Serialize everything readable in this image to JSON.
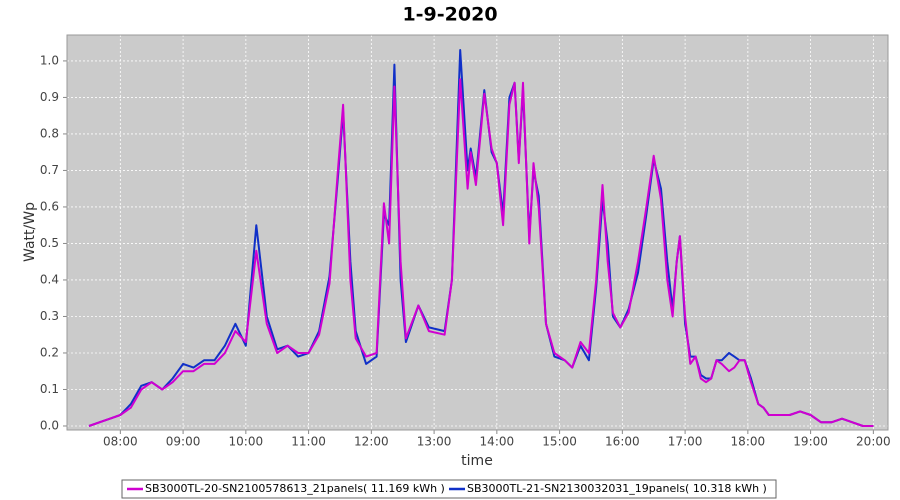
{
  "chart_data": {
    "type": "line",
    "title": "1-9-2020",
    "x_label": "time",
    "y_label": "Watt/Wp",
    "xlim": [
      429,
      1214
    ],
    "ylim": [
      -0.011,
      1.071
    ],
    "xticks": [
      {
        "value": 480,
        "label": "08:00"
      },
      {
        "value": 540,
        "label": "09:00"
      },
      {
        "value": 600,
        "label": "10:00"
      },
      {
        "value": 660,
        "label": "11:00"
      },
      {
        "value": 720,
        "label": "12:00"
      },
      {
        "value": 780,
        "label": "13:00"
      },
      {
        "value": 840,
        "label": "14:00"
      },
      {
        "value": 900,
        "label": "15:00"
      },
      {
        "value": 960,
        "label": "16:00"
      },
      {
        "value": 1020,
        "label": "17:00"
      },
      {
        "value": 1080,
        "label": "18:00"
      },
      {
        "value": 1140,
        "label": "19:00"
      },
      {
        "value": 1200,
        "label": "20:00"
      }
    ],
    "yticks": [
      {
        "value": 0,
        "label": "0.0"
      },
      0.1,
      0.2,
      0.3,
      0.4,
      0.5,
      0.6,
      0.7,
      0.8,
      0.9,
      {
        "value": 1,
        "label": "1.0"
      }
    ],
    "grid": true,
    "legend": "bottom",
    "x": [
      450,
      460,
      470,
      480,
      490,
      500,
      510,
      520,
      530,
      540,
      550,
      560,
      570,
      580,
      590,
      600,
      610,
      620,
      630,
      640,
      650,
      660,
      670,
      680,
      688,
      693,
      700,
      705,
      715,
      725,
      732,
      737,
      742,
      748,
      753,
      765,
      775,
      790,
      797,
      805,
      812,
      815,
      820,
      828,
      835,
      840,
      846,
      852,
      857,
      861,
      865,
      871,
      875,
      880,
      887,
      895,
      905,
      912,
      920,
      928,
      935,
      941,
      946,
      951,
      958,
      966,
      975,
      983,
      990,
      997,
      1003,
      1008,
      1012,
      1015,
      1020,
      1025,
      1030,
      1035,
      1040,
      1045,
      1050,
      1055,
      1062,
      1067,
      1072,
      1077,
      1083,
      1090,
      1095,
      1100,
      1110,
      1120,
      1130,
      1140,
      1150,
      1160,
      1170,
      1180,
      1190,
      1200
    ],
    "series": [
      {
        "name": "SB3000TL-20-SN2100578613_21panels( 11.169 kWh )",
        "color": "#d000d0",
        "values": [
          0.0,
          0.01,
          0.02,
          0.03,
          0.05,
          0.1,
          0.12,
          0.1,
          0.12,
          0.15,
          0.15,
          0.17,
          0.17,
          0.2,
          0.26,
          0.23,
          0.48,
          0.28,
          0.2,
          0.22,
          0.2,
          0.2,
          0.25,
          0.39,
          0.7,
          0.88,
          0.4,
          0.24,
          0.19,
          0.2,
          0.61,
          0.5,
          0.93,
          0.45,
          0.24,
          0.33,
          0.26,
          0.25,
          0.4,
          0.95,
          0.65,
          0.75,
          0.66,
          0.91,
          0.76,
          0.72,
          0.55,
          0.88,
          0.94,
          0.72,
          0.94,
          0.5,
          0.72,
          0.6,
          0.28,
          0.2,
          0.18,
          0.16,
          0.23,
          0.2,
          0.4,
          0.66,
          0.45,
          0.31,
          0.27,
          0.31,
          0.45,
          0.6,
          0.74,
          0.62,
          0.4,
          0.3,
          0.45,
          0.52,
          0.3,
          0.17,
          0.19,
          0.13,
          0.12,
          0.13,
          0.18,
          0.17,
          0.15,
          0.16,
          0.18,
          0.18,
          0.12,
          0.06,
          0.05,
          0.03,
          0.03,
          0.03,
          0.04,
          0.03,
          0.01,
          0.01,
          0.02,
          0.01,
          0.0,
          0.0
        ]
      },
      {
        "name": "SB3000TL-21-SN2130032031_19panels( 10.318 kWh )",
        "color": "#1030c8",
        "values": [
          0.0,
          0.01,
          0.02,
          0.03,
          0.06,
          0.11,
          0.12,
          0.1,
          0.13,
          0.17,
          0.16,
          0.18,
          0.18,
          0.22,
          0.28,
          0.22,
          0.55,
          0.3,
          0.21,
          0.22,
          0.19,
          0.2,
          0.26,
          0.41,
          0.68,
          0.86,
          0.45,
          0.26,
          0.17,
          0.19,
          0.58,
          0.55,
          0.99,
          0.4,
          0.23,
          0.33,
          0.27,
          0.26,
          0.4,
          1.03,
          0.7,
          0.76,
          0.68,
          0.92,
          0.75,
          0.72,
          0.58,
          0.9,
          0.94,
          0.73,
          0.92,
          0.52,
          0.7,
          0.63,
          0.28,
          0.19,
          0.18,
          0.16,
          0.22,
          0.18,
          0.38,
          0.62,
          0.5,
          0.3,
          0.27,
          0.32,
          0.42,
          0.58,
          0.73,
          0.65,
          0.45,
          0.32,
          0.45,
          0.52,
          0.28,
          0.19,
          0.19,
          0.14,
          0.13,
          0.13,
          0.18,
          0.18,
          0.2,
          0.19,
          0.18,
          0.18,
          0.13,
          0.06,
          0.05,
          0.03,
          0.03,
          0.03,
          0.04,
          0.03,
          0.01,
          0.01,
          0.02,
          0.01,
          0.0,
          0.0
        ]
      }
    ]
  }
}
